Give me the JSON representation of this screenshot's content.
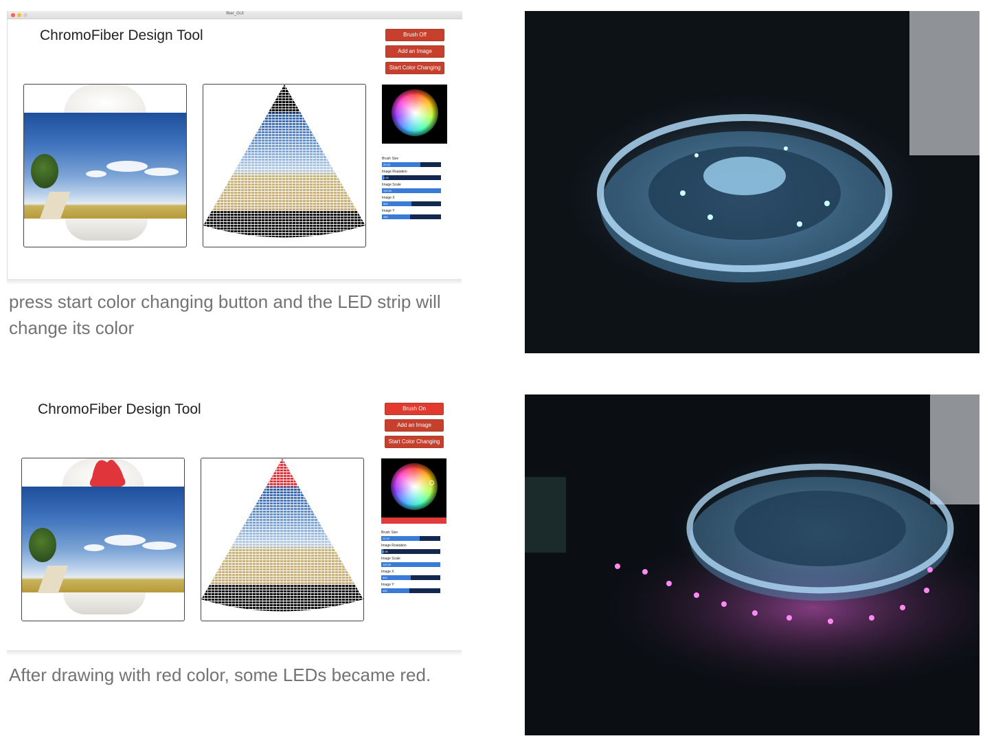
{
  "window": {
    "title": "fiber_GUI"
  },
  "top": {
    "app_title": "ChromoFiber Design Tool",
    "buttons": {
      "brush": "Brush Off",
      "add_image": "Add an Image",
      "color_changing": "Start Color Changing"
    },
    "brush_color": "#c6402d",
    "sliders": [
      {
        "label": "Brush Size",
        "value": "20.00",
        "fraction": 0.65
      },
      {
        "label": "Image Roatation",
        "value": "0.00",
        "fraction": 0.03
      },
      {
        "label": "Image Scale",
        "value": "100.00",
        "fraction": 1.0
      },
      {
        "label": "Image X",
        "value": "500",
        "fraction": 0.5
      },
      {
        "label": "Image Y",
        "value": "450",
        "fraction": 0.48
      }
    ],
    "caption": "press start color changing button and the LED strip will change its color"
  },
  "bottom": {
    "app_title": "ChromoFiber Design Tool",
    "buttons": {
      "brush": "Brush On",
      "add_image": "Add an Image",
      "color_changing": "Start Color Changing"
    },
    "brush_color": "#e23a2f",
    "selected_color": "#e23a3a",
    "sliders": [
      {
        "label": "Brush Size",
        "value": "22.00",
        "fraction": 0.65
      },
      {
        "label": "Image Roatation",
        "value": "0.00",
        "fraction": 0.03
      },
      {
        "label": "Image Scale",
        "value": "100.00",
        "fraction": 1.0
      },
      {
        "label": "Image X",
        "value": "500",
        "fraction": 0.5
      },
      {
        "label": "Image Y",
        "value": "450",
        "fraction": 0.48
      }
    ],
    "caption": "After drawing with red color, some LEDs became red."
  },
  "icons": [
    "close-dot",
    "minimize-dot",
    "zoom-dot",
    "color-wheel-icon"
  ]
}
